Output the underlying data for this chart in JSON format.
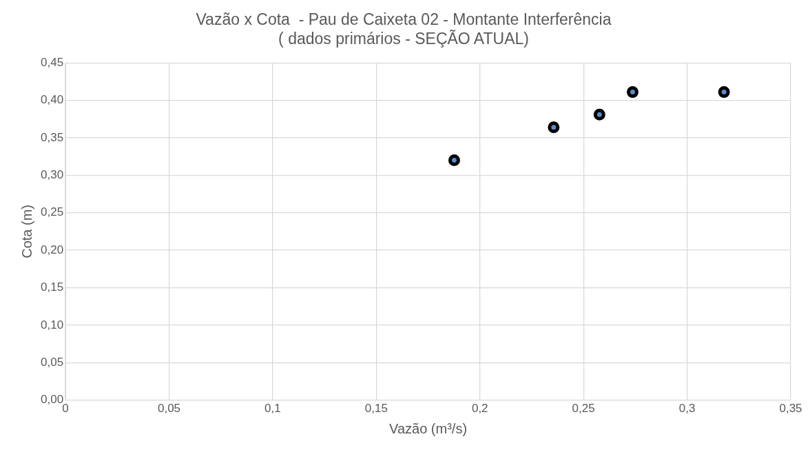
{
  "chart_data": {
    "type": "scatter",
    "title": "Vazão x Cota  - Pau de Caixeta 02 - Montante Interferência\n( dados primários - SEÇÃO ATUAL)",
    "xlabel": "Vazão (m³/s)",
    "ylabel": "Cota (m)",
    "x": [
      0.1876,
      0.2356,
      0.2577,
      0.2737,
      0.3178
    ],
    "series": [
      {
        "color": "#000000",
        "values": [
          0.32,
          0.364,
          0.381,
          0.411,
          0.411
        ]
      }
    ],
    "xlim": [
      0,
      0.35
    ],
    "xticks": [
      0,
      {
        "value": 0.05,
        "label": "0,05"
      },
      {
        "value": 0.1,
        "label": "0,1"
      },
      {
        "value": 0.15,
        "label": "0,15"
      },
      {
        "value": 0.2,
        "label": "0,2"
      },
      {
        "value": 0.25,
        "label": "0,25"
      },
      {
        "value": 0.3,
        "label": "0,3"
      },
      {
        "value": 0.35,
        "label": "0,35"
      }
    ],
    "ylim": [
      0,
      0.45
    ],
    "yticks": [
      {
        "value": 0,
        "label": "0,00"
      },
      {
        "value": 0.05,
        "label": "0,05"
      },
      {
        "value": 0.1,
        "label": "0,10"
      },
      {
        "value": 0.15,
        "label": "0,15"
      },
      {
        "value": 0.2,
        "label": "0,20"
      },
      {
        "value": 0.25,
        "label": "0,25"
      },
      {
        "value": 0.3,
        "label": "0,30"
      },
      {
        "value": 0.35,
        "label": "0,35"
      },
      {
        "value": 0.4,
        "label": "0,40"
      },
      {
        "value": 0.45,
        "label": "0,45"
      }
    ],
    "grid": true,
    "legend": false,
    "marker": "circle"
  }
}
